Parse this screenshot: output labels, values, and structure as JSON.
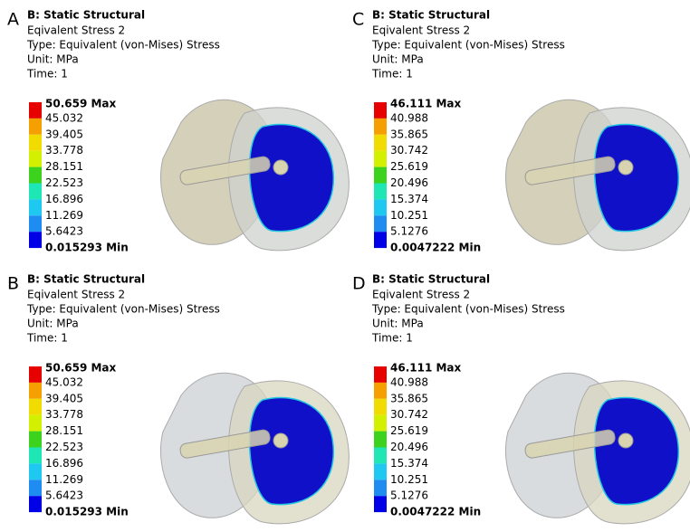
{
  "legend_colors": [
    "#e60000",
    "#f5a000",
    "#f0dc00",
    "#d2f000",
    "#3cd21e",
    "#1ee6b4",
    "#1ec8f0",
    "#1e8cf0",
    "#0000e6"
  ],
  "panels": [
    {
      "letter": "A",
      "title": "B: Static Structural",
      "lines": [
        "Eqivalent Stress 2",
        "Type: Equivalent (von-Mises) Stress",
        "Unit: MPa",
        "Time: 1"
      ],
      "legend": [
        "50.659 Max",
        "45.032",
        "39.405",
        "33.778",
        "28.151",
        "22.523",
        "16.896",
        "11.269",
        "5.6423",
        "0.015293 Min"
      ]
    },
    {
      "letter": "C",
      "title": "B: Static Structural",
      "lines": [
        "Eqivalent Stress 2",
        "Type: Equivalent (von-Mises) Stress",
        "Unit: MPa",
        "Time: 1"
      ],
      "legend": [
        "46.111 Max",
        "40.988",
        "35.865",
        "30.742",
        "25.619",
        "20.496",
        "15.374",
        "10.251",
        "5.1276",
        "0.0047222 Min"
      ]
    },
    {
      "letter": "B",
      "title": "B: Static Structural",
      "lines": [
        "Eqivalent Stress 2",
        "Type: Equivalent (von-Mises) Stress",
        "Unit: MPa",
        "Time: 1"
      ],
      "legend": [
        "50.659 Max",
        "45.032",
        "39.405",
        "33.778",
        "28.151",
        "22.523",
        "16.896",
        "11.269",
        "5.6423",
        "0.015293 Min"
      ]
    },
    {
      "letter": "D",
      "title": "B: Static Structural",
      "lines": [
        "Eqivalent Stress 2",
        "Type: Equivalent (von-Mises) Stress",
        "Unit: MPa",
        "Time: 1"
      ],
      "legend": [
        "46.111 Max",
        "40.988",
        "35.865",
        "30.742",
        "25.619",
        "20.496",
        "15.374",
        "10.251",
        "5.1276",
        "0.0047222 Min"
      ]
    }
  ]
}
